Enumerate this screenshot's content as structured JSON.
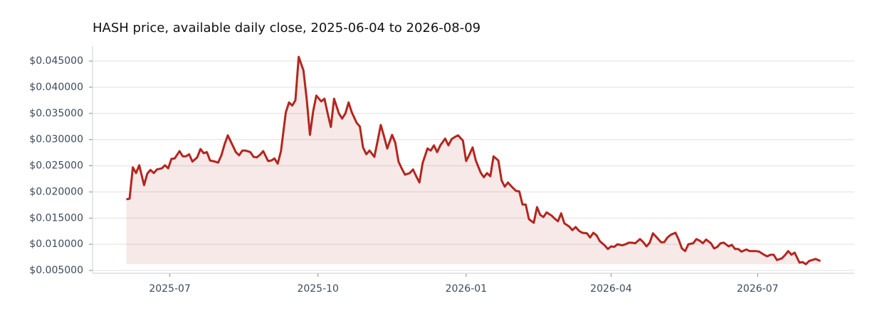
{
  "chart_data": {
    "type": "line",
    "title": "HASH price, available daily close, 2025-06-04 to 2026-08-09",
    "color": "#b3261e",
    "grid": true,
    "xlim": [
      "2025-05-14",
      "2026-08-30"
    ],
    "xticks": [
      "2025-07",
      "2025-10",
      "2026-01",
      "2026-04",
      "2026-07"
    ],
    "ylim": [
      0.00446,
      0.04785
    ],
    "yticks": [
      {
        "value": 0.005,
        "label": "$0.005000"
      },
      {
        "value": 0.01,
        "label": "$0.010000"
      },
      {
        "value": 0.015,
        "label": "$0.015000"
      },
      {
        "value": 0.02,
        "label": "$0.020000"
      },
      {
        "value": 0.025,
        "label": "$0.025000"
      },
      {
        "value": 0.03,
        "label": "$0.030000"
      },
      {
        "value": 0.035,
        "label": "$0.035000"
      },
      {
        "value": 0.04,
        "label": "$0.040000"
      },
      {
        "value": 0.045,
        "label": "$0.045000"
      }
    ],
    "x": [
      "2025-06-04",
      "2025-06-06",
      "2025-06-08",
      "2025-06-10",
      "2025-06-12",
      "2025-06-15",
      "2025-06-17",
      "2025-06-19",
      "2025-06-21",
      "2025-06-23",
      "2025-06-26",
      "2025-06-28",
      "2025-06-30",
      "2025-07-02",
      "2025-07-04",
      "2025-07-07",
      "2025-07-09",
      "2025-07-11",
      "2025-07-13",
      "2025-07-15",
      "2025-07-18",
      "2025-07-20",
      "2025-07-22",
      "2025-07-24",
      "2025-07-26",
      "2025-07-29",
      "2025-07-31",
      "2025-08-02",
      "2025-08-04",
      "2025-08-06",
      "2025-08-09",
      "2025-08-11",
      "2025-08-13",
      "2025-08-15",
      "2025-08-17",
      "2025-08-20",
      "2025-08-22",
      "2025-08-24",
      "2025-08-26",
      "2025-08-28",
      "2025-08-31",
      "2025-09-02",
      "2025-09-04",
      "2025-09-06",
      "2025-09-08",
      "2025-09-11",
      "2025-09-13",
      "2025-09-15",
      "2025-09-17",
      "2025-09-19",
      "2025-09-22",
      "2025-09-24",
      "2025-09-26",
      "2025-09-28",
      "2025-09-30",
      "2025-10-03",
      "2025-10-05",
      "2025-10-07",
      "2025-10-09",
      "2025-10-11",
      "2025-10-14",
      "2025-10-16",
      "2025-10-18",
      "2025-10-20",
      "2025-10-22",
      "2025-10-25",
      "2025-10-27",
      "2025-10-29",
      "2025-10-31",
      "2025-11-02",
      "2025-11-05",
      "2025-11-07",
      "2025-11-09",
      "2025-11-11",
      "2025-11-13",
      "2025-11-16",
      "2025-11-18",
      "2025-11-20",
      "2025-11-22",
      "2025-11-24",
      "2025-11-27",
      "2025-11-29",
      "2025-12-01",
      "2025-12-03",
      "2025-12-05",
      "2025-12-08",
      "2025-12-10",
      "2025-12-12",
      "2025-12-14",
      "2025-12-16",
      "2025-12-19",
      "2025-12-21",
      "2025-12-23",
      "2025-12-25",
      "2025-12-27",
      "2025-12-30",
      "2026-01-01",
      "2026-01-03",
      "2026-01-05",
      "2026-01-07",
      "2026-01-10",
      "2026-01-12",
      "2026-01-14",
      "2026-01-16",
      "2026-01-18",
      "2026-01-21",
      "2026-01-23",
      "2026-01-25",
      "2026-01-27",
      "2026-01-29",
      "2026-02-01",
      "2026-02-03",
      "2026-02-05",
      "2026-02-07",
      "2026-02-09",
      "2026-02-12",
      "2026-02-14",
      "2026-02-16",
      "2026-02-18",
      "2026-02-20",
      "2026-02-23",
      "2026-02-25",
      "2026-02-27",
      "2026-03-01",
      "2026-03-03",
      "2026-03-06",
      "2026-03-08",
      "2026-03-10",
      "2026-03-12",
      "2026-03-14",
      "2026-03-17",
      "2026-03-19",
      "2026-03-21",
      "2026-03-23",
      "2026-03-25",
      "2026-03-28",
      "2026-03-30",
      "2026-04-01",
      "2026-04-03",
      "2026-04-05",
      "2026-04-08",
      "2026-04-10",
      "2026-04-12",
      "2026-04-14",
      "2026-04-16",
      "2026-04-19",
      "2026-04-21",
      "2026-04-23",
      "2026-04-25",
      "2026-04-27",
      "2026-04-30",
      "2026-05-02",
      "2026-05-04",
      "2026-05-06",
      "2026-05-08",
      "2026-05-11",
      "2026-05-13",
      "2026-05-15",
      "2026-05-17",
      "2026-05-19",
      "2026-05-22",
      "2026-05-24",
      "2026-05-26",
      "2026-05-28",
      "2026-05-30",
      "2026-06-02",
      "2026-06-04",
      "2026-06-06",
      "2026-06-08",
      "2026-06-10",
      "2026-06-13",
      "2026-06-15",
      "2026-06-17",
      "2026-06-19",
      "2026-06-21",
      "2026-06-24",
      "2026-06-26",
      "2026-06-28",
      "2026-06-30",
      "2026-07-02",
      "2026-07-05",
      "2026-07-07",
      "2026-07-09",
      "2026-07-11",
      "2026-07-13",
      "2026-07-16",
      "2026-07-18",
      "2026-07-20",
      "2026-07-22",
      "2026-07-24",
      "2026-07-27",
      "2026-07-29",
      "2026-07-31",
      "2026-08-02",
      "2026-08-06",
      "2026-08-09"
    ],
    "values": [
      0.0186,
      0.0187,
      0.0247,
      0.0236,
      0.0251,
      0.0213,
      0.0235,
      0.0242,
      0.0236,
      0.0243,
      0.0245,
      0.0251,
      0.0245,
      0.0263,
      0.0264,
      0.0278,
      0.0268,
      0.0268,
      0.0272,
      0.0258,
      0.0266,
      0.0282,
      0.0274,
      0.0276,
      0.026,
      0.0258,
      0.0256,
      0.027,
      0.0291,
      0.0308,
      0.0289,
      0.0276,
      0.027,
      0.0279,
      0.0279,
      0.0276,
      0.0267,
      0.0266,
      0.0271,
      0.0278,
      0.0259,
      0.026,
      0.0264,
      0.0254,
      0.0278,
      0.0352,
      0.0371,
      0.0365,
      0.0375,
      0.0458,
      0.0432,
      0.0377,
      0.0309,
      0.0354,
      0.0384,
      0.0373,
      0.0378,
      0.035,
      0.0324,
      0.0378,
      0.035,
      0.034,
      0.035,
      0.0371,
      0.0352,
      0.0332,
      0.0325,
      0.0285,
      0.0272,
      0.0279,
      0.0267,
      0.0297,
      0.0328,
      0.0306,
      0.0283,
      0.0309,
      0.0294,
      0.0258,
      0.0245,
      0.0233,
      0.0236,
      0.0243,
      0.023,
      0.0218,
      0.0255,
      0.0283,
      0.0279,
      0.0289,
      0.0276,
      0.0289,
      0.0302,
      0.0289,
      0.0301,
      0.0305,
      0.0308,
      0.0298,
      0.0259,
      0.0271,
      0.0285,
      0.026,
      0.0237,
      0.0228,
      0.0236,
      0.023,
      0.0268,
      0.026,
      0.0222,
      0.021,
      0.0218,
      0.0211,
      0.0202,
      0.0201,
      0.0176,
      0.0176,
      0.0148,
      0.0141,
      0.0171,
      0.0156,
      0.0152,
      0.0161,
      0.0155,
      0.0149,
      0.0144,
      0.0159,
      0.014,
      0.0134,
      0.0127,
      0.0133,
      0.0126,
      0.0122,
      0.0121,
      0.0113,
      0.0122,
      0.0117,
      0.0106,
      0.0098,
      0.0091,
      0.0096,
      0.0095,
      0.01,
      0.0098,
      0.01,
      0.0103,
      0.0103,
      0.0102,
      0.011,
      0.0104,
      0.0096,
      0.0103,
      0.0121,
      0.0111,
      0.0104,
      0.0104,
      0.0113,
      0.0118,
      0.0122,
      0.0109,
      0.0092,
      0.0087,
      0.01,
      0.0102,
      0.011,
      0.0107,
      0.0102,
      0.0109,
      0.0102,
      0.0092,
      0.0095,
      0.0102,
      0.0103,
      0.0096,
      0.0099,
      0.0091,
      0.0091,
      0.0086,
      0.009,
      0.0087,
      0.0087,
      0.0087,
      0.0086,
      0.008,
      0.0077,
      0.008,
      0.008,
      0.007,
      0.0073,
      0.0079,
      0.0087,
      0.008,
      0.0084,
      0.0065,
      0.0066,
      0.0062,
      0.0068,
      0.0072,
      0.0068
    ]
  }
}
